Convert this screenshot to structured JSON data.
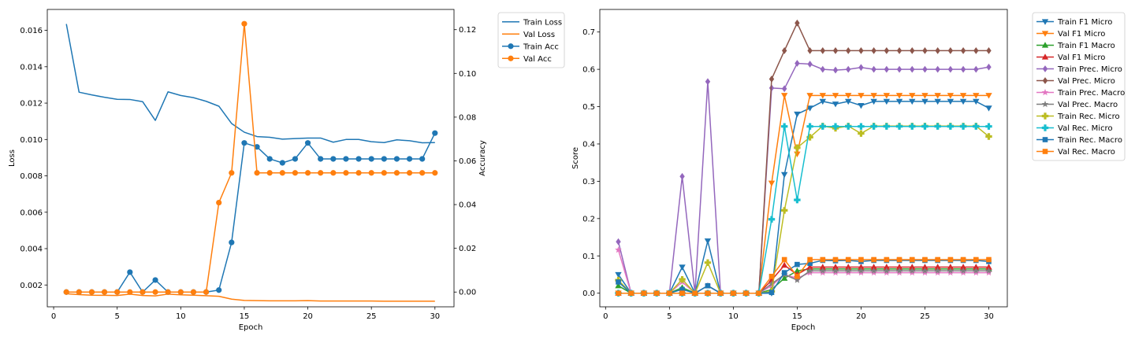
{
  "chart_data": [
    {
      "type": "line",
      "xlabel": "Epoch",
      "ylabel": "Loss",
      "y2label": "Accuracy",
      "grid": false,
      "legend_placement": "outside-upper-right",
      "xlim": [
        -0.5,
        31.5
      ],
      "ylim": [
        0.0008,
        0.01715
      ],
      "y2lim": [
        -0.00675,
        0.12925
      ],
      "x_ticks": [
        0,
        5,
        10,
        15,
        20,
        25,
        30
      ],
      "y_ticks": [
        0.002,
        0.004,
        0.006,
        0.008,
        0.01,
        0.012,
        0.014,
        0.016
      ],
      "y_tick_labels": [
        "0.002",
        "0.004",
        "0.006",
        "0.008",
        "0.010",
        "0.012",
        "0.014",
        "0.016"
      ],
      "y2_ticks": [
        0.0,
        0.02,
        0.04,
        0.06,
        0.08,
        0.1,
        0.12
      ],
      "y2_tick_labels": [
        "0.00",
        "0.02",
        "0.04",
        "0.06",
        "0.08",
        "0.10",
        "0.12"
      ],
      "x": [
        1,
        2,
        3,
        4,
        5,
        6,
        7,
        8,
        9,
        10,
        11,
        12,
        13,
        14,
        15,
        16,
        17,
        18,
        19,
        20,
        21,
        22,
        23,
        24,
        25,
        26,
        27,
        28,
        29,
        30
      ],
      "series": [
        {
          "name": "Train Loss",
          "axis": "left",
          "color": "#1f77b4",
          "marker": "none",
          "values": [
            0.01635,
            0.0126,
            0.01245,
            0.01232,
            0.01221,
            0.0122,
            0.01208,
            0.01105,
            0.01262,
            0.01242,
            0.0123,
            0.0121,
            0.01183,
            0.01088,
            0.0104,
            0.01016,
            0.01012,
            0.01002,
            0.01005,
            0.01008,
            0.01008,
            0.00985,
            0.01,
            0.01,
            0.00988,
            0.00983,
            0.00998,
            0.00993,
            0.00982,
            0.00983
          ]
        },
        {
          "name": "Val Loss",
          "axis": "left",
          "color": "#ff7f0e",
          "marker": "none",
          "values": [
            0.00152,
            0.00147,
            0.00144,
            0.00143,
            0.00142,
            0.0015,
            0.00142,
            0.0014,
            0.0015,
            0.00146,
            0.00144,
            0.00141,
            0.00138,
            0.00122,
            0.00115,
            0.00114,
            0.00113,
            0.00113,
            0.00113,
            0.00114,
            0.00112,
            0.00112,
            0.00112,
            0.00112,
            0.00112,
            0.00111,
            0.00111,
            0.00111,
            0.00111,
            0.00111
          ]
        },
        {
          "name": "Train Acc",
          "axis": "right",
          "color": "#1f77b4",
          "marker": "circle",
          "values": [
            0.0,
            0.0,
            0.0,
            0.0,
            0.0,
            0.0091,
            0.0,
            0.0055,
            0.0,
            0.0,
            0.0,
            0.0,
            0.0009,
            0.0227,
            0.0682,
            0.0664,
            0.0609,
            0.0591,
            0.0609,
            0.0682,
            0.0609,
            0.0609,
            0.0609,
            0.0609,
            0.0609,
            0.0609,
            0.0609,
            0.0609,
            0.0609,
            0.0727
          ]
        },
        {
          "name": "Val Acc",
          "axis": "right",
          "color": "#ff7f0e",
          "marker": "circle",
          "values": [
            0.0,
            0.0,
            0.0,
            0.0,
            0.0,
            0.0,
            0.0,
            0.0,
            0.0,
            0.0,
            0.0,
            0.0,
            0.0409,
            0.0545,
            0.1227,
            0.0545,
            0.0545,
            0.0545,
            0.0545,
            0.0545,
            0.0545,
            0.0545,
            0.0545,
            0.0545,
            0.0545,
            0.0545,
            0.0545,
            0.0545,
            0.0545,
            0.0545
          ]
        }
      ]
    },
    {
      "type": "line",
      "xlabel": "Epoch",
      "ylabel": "Score",
      "grid": false,
      "legend_placement": "outside-upper-right",
      "xlim": [
        -0.45,
        31.45
      ],
      "ylim": [
        -0.0365,
        0.7605
      ],
      "x_ticks": [
        0,
        5,
        10,
        15,
        20,
        25,
        30
      ],
      "y_ticks": [
        0.0,
        0.1,
        0.2,
        0.3,
        0.4,
        0.5,
        0.6,
        0.7
      ],
      "y_tick_labels": [
        "0.0",
        "0.1",
        "0.2",
        "0.3",
        "0.4",
        "0.5",
        "0.6",
        "0.7"
      ],
      "x": [
        1,
        2,
        3,
        4,
        5,
        6,
        7,
        8,
        9,
        10,
        11,
        12,
        13,
        14,
        15,
        16,
        17,
        18,
        19,
        20,
        21,
        22,
        23,
        24,
        25,
        26,
        27,
        28,
        29,
        30
      ],
      "series": [
        {
          "name": "Train F1 Micro",
          "color": "#1f77b4",
          "marker": "triangle-down",
          "values": [
            0.05,
            0.0,
            0.0,
            0.0,
            0.0,
            0.07,
            0.0,
            0.14,
            0.0,
            0.0,
            0.0,
            0.0,
            0.0,
            0.318,
            0.48,
            0.496,
            0.514,
            0.507,
            0.514,
            0.503,
            0.514,
            0.514,
            0.514,
            0.514,
            0.514,
            0.514,
            0.514,
            0.514,
            0.514,
            0.496
          ]
        },
        {
          "name": "Val F1 Micro",
          "color": "#ff7f0e",
          "marker": "triangle-down",
          "values": [
            0.0,
            0.0,
            0.0,
            0.0,
            0.0,
            0.0,
            0.0,
            0.0,
            0.0,
            0.0,
            0.0,
            0.0,
            0.295,
            0.53,
            0.373,
            0.53,
            0.53,
            0.53,
            0.53,
            0.53,
            0.53,
            0.53,
            0.53,
            0.53,
            0.53,
            0.53,
            0.53,
            0.53,
            0.53,
            0.53
          ]
        },
        {
          "name": "Train F1 Macro",
          "color": "#2ca02c",
          "marker": "triangle-up",
          "values": [
            0.02,
            0.0,
            0.0,
            0.0,
            0.0,
            0.015,
            0.0,
            0.02,
            0.0,
            0.0,
            0.0,
            0.0,
            0.01,
            0.04,
            0.06,
            0.065,
            0.065,
            0.065,
            0.065,
            0.065,
            0.065,
            0.065,
            0.065,
            0.065,
            0.065,
            0.065,
            0.065,
            0.065,
            0.065,
            0.065
          ]
        },
        {
          "name": "Val F1 Micro",
          "color": "#d62728",
          "marker": "triangle-up",
          "values": [
            0.0,
            0.0,
            0.0,
            0.0,
            0.0,
            0.0,
            0.0,
            0.0,
            0.0,
            0.0,
            0.0,
            0.0,
            0.035,
            0.075,
            0.05,
            0.07,
            0.07,
            0.07,
            0.07,
            0.07,
            0.07,
            0.07,
            0.07,
            0.07,
            0.07,
            0.07,
            0.07,
            0.07,
            0.07,
            0.07
          ]
        },
        {
          "name": "Train Prec. Micro",
          "color": "#9467bd",
          "marker": "diamond",
          "values": [
            0.138,
            0.0,
            0.0,
            0.0,
            0.0,
            0.313,
            0.0,
            0.567,
            0.0,
            0.0,
            0.0,
            0.0,
            0.55,
            0.548,
            0.616,
            0.614,
            0.6,
            0.598,
            0.6,
            0.605,
            0.6,
            0.6,
            0.6,
            0.6,
            0.6,
            0.6,
            0.6,
            0.6,
            0.6,
            0.606
          ]
        },
        {
          "name": "Val Prec. Micro",
          "color": "#8c564b",
          "marker": "diamond",
          "values": [
            0.0,
            0.0,
            0.0,
            0.0,
            0.0,
            0.0,
            0.0,
            0.0,
            0.0,
            0.0,
            0.0,
            0.0,
            0.574,
            0.65,
            0.724,
            0.65,
            0.65,
            0.65,
            0.65,
            0.65,
            0.65,
            0.65,
            0.65,
            0.65,
            0.65,
            0.65,
            0.65,
            0.65,
            0.65,
            0.65
          ]
        },
        {
          "name": "Train Prec. Macro",
          "color": "#e377c2",
          "marker": "star",
          "values": [
            0.116,
            0.0,
            0.0,
            0.0,
            0.0,
            0.03,
            0.0,
            0.02,
            0.0,
            0.0,
            0.0,
            0.0,
            0.02,
            0.05,
            0.04,
            0.055,
            0.055,
            0.055,
            0.055,
            0.055,
            0.055,
            0.055,
            0.055,
            0.055,
            0.055,
            0.055,
            0.055,
            0.055,
            0.055,
            0.055
          ]
        },
        {
          "name": "Val Prec. Macro",
          "color": "#7f7f7f",
          "marker": "star",
          "values": [
            0.0,
            0.0,
            0.0,
            0.0,
            0.0,
            0.0,
            0.0,
            0.0,
            0.0,
            0.0,
            0.0,
            0.0,
            0.025,
            0.05,
            0.035,
            0.06,
            0.06,
            0.06,
            0.06,
            0.06,
            0.06,
            0.06,
            0.06,
            0.06,
            0.06,
            0.06,
            0.06,
            0.06,
            0.06,
            0.06
          ]
        },
        {
          "name": "Train Rec. Micro",
          "color": "#bcbd22",
          "marker": "plus",
          "values": [
            0.035,
            0.0,
            0.0,
            0.0,
            0.0,
            0.037,
            0.0,
            0.082,
            0.0,
            0.0,
            0.0,
            0.0,
            0.005,
            0.222,
            0.39,
            0.418,
            0.448,
            0.442,
            0.448,
            0.428,
            0.448,
            0.448,
            0.448,
            0.448,
            0.448,
            0.448,
            0.448,
            0.448,
            0.448,
            0.42
          ]
        },
        {
          "name": "Val Rec. Micro",
          "color": "#17becf",
          "marker": "plus",
          "values": [
            0.0,
            0.0,
            0.0,
            0.0,
            0.0,
            0.0,
            0.0,
            0.0,
            0.0,
            0.0,
            0.0,
            0.0,
            0.198,
            0.447,
            0.25,
            0.447,
            0.447,
            0.447,
            0.447,
            0.447,
            0.447,
            0.447,
            0.447,
            0.447,
            0.447,
            0.447,
            0.447,
            0.447,
            0.447,
            0.447
          ]
        },
        {
          "name": "Train Rec. Macro",
          "color": "#1f77b4",
          "marker": "square",
          "values": [
            0.03,
            0.0,
            0.0,
            0.0,
            0.0,
            0.01,
            0.0,
            0.02,
            0.0,
            0.0,
            0.0,
            0.0,
            0.002,
            0.055,
            0.077,
            0.08,
            0.088,
            0.087,
            0.088,
            0.085,
            0.088,
            0.088,
            0.088,
            0.088,
            0.088,
            0.088,
            0.088,
            0.088,
            0.088,
            0.085
          ]
        },
        {
          "name": "Val Rec. Macro",
          "color": "#ff7f0e",
          "marker": "square",
          "values": [
            0.0,
            0.0,
            0.0,
            0.0,
            0.0,
            0.0,
            0.0,
            0.0,
            0.0,
            0.0,
            0.0,
            0.0,
            0.045,
            0.09,
            0.045,
            0.09,
            0.09,
            0.09,
            0.09,
            0.09,
            0.09,
            0.09,
            0.09,
            0.09,
            0.09,
            0.09,
            0.09,
            0.09,
            0.09,
            0.09
          ]
        }
      ]
    }
  ]
}
